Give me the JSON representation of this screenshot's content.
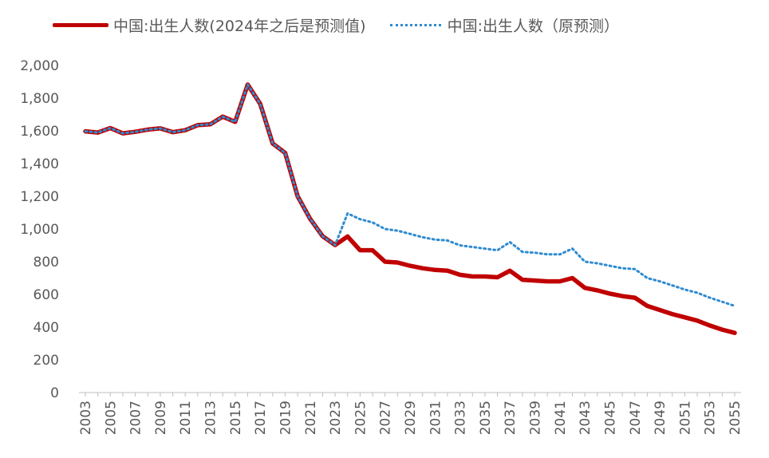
{
  "chart_data": {
    "type": "line",
    "title": "",
    "xlabel": "",
    "ylabel": "",
    "ylim": [
      0,
      2000
    ],
    "yticks": [
      "0",
      "200",
      "400",
      "600",
      "800",
      "1,000",
      "1,200",
      "1,400",
      "1,600",
      "1,800",
      "2,000"
    ],
    "xticks": [
      "2003",
      "2005",
      "2007",
      "2009",
      "2011",
      "2013",
      "2015",
      "2017",
      "2019",
      "2021",
      "2023",
      "2025",
      "2027",
      "2029",
      "2031",
      "2033",
      "2035",
      "2037",
      "2039",
      "2041",
      "2043",
      "2045",
      "2047",
      "2049",
      "2051",
      "2053",
      "2055"
    ],
    "legend_position": "top",
    "grid": false,
    "x": [
      2003,
      2004,
      2005,
      2006,
      2007,
      2008,
      2009,
      2010,
      2011,
      2012,
      2013,
      2014,
      2015,
      2016,
      2017,
      2018,
      2019,
      2020,
      2021,
      2022,
      2023,
      2024,
      2025,
      2026,
      2027,
      2028,
      2029,
      2030,
      2031,
      2032,
      2033,
      2034,
      2035,
      2036,
      2037,
      2038,
      2039,
      2040,
      2041,
      2042,
      2043,
      2044,
      2045,
      2046,
      2047,
      2048,
      2049,
      2050,
      2051,
      2052,
      2053,
      2054,
      2055
    ],
    "series": [
      {
        "name": "中国:出生人数(2024年之后是预测值)",
        "color": "#c00000",
        "style": "solid",
        "values": [
          1597,
          1590,
          1617,
          1585,
          1594,
          1608,
          1615,
          1592,
          1604,
          1635,
          1640,
          1687,
          1655,
          1883,
          1765,
          1523,
          1465,
          1200,
          1062,
          956,
          902,
          954,
          870,
          870,
          800,
          795,
          775,
          760,
          750,
          745,
          720,
          710,
          710,
          705,
          745,
          690,
          685,
          680,
          680,
          700,
          640,
          625,
          605,
          590,
          580,
          530,
          505,
          480,
          460,
          440,
          410,
          385,
          365
        ]
      },
      {
        "name": "中国:出生人数（原预测）",
        "color": "#2e8bd0",
        "style": "dotted",
        "values": [
          1597,
          1590,
          1617,
          1585,
          1594,
          1608,
          1615,
          1592,
          1604,
          1635,
          1640,
          1687,
          1655,
          1883,
          1765,
          1523,
          1465,
          1200,
          1062,
          956,
          902,
          1095,
          1060,
          1040,
          1000,
          990,
          970,
          950,
          935,
          930,
          900,
          890,
          880,
          870,
          920,
          860,
          855,
          845,
          845,
          880,
          800,
          790,
          775,
          760,
          755,
          700,
          680,
          655,
          630,
          610,
          580,
          555,
          530
        ]
      }
    ]
  }
}
